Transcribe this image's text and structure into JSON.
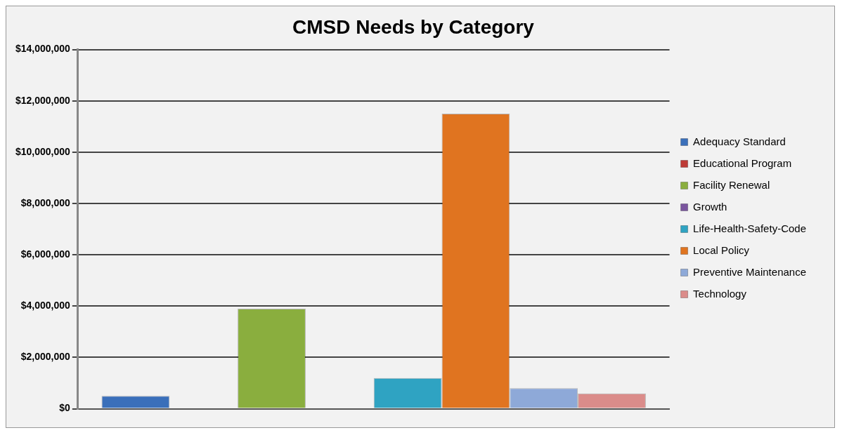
{
  "chart_data": {
    "type": "bar",
    "title": "CMSD Needs by Category",
    "categories": [
      null
    ],
    "series": [
      {
        "name": "Adequacy Standard",
        "color": "#3a6fba",
        "values": [
          500000
        ]
      },
      {
        "name": "Educational Program",
        "color": "#be3b37",
        "values": [
          0
        ]
      },
      {
        "name": "Facility Renewal",
        "color": "#8aae3e",
        "values": [
          3900000
        ]
      },
      {
        "name": "Growth",
        "color": "#7a559e",
        "values": [
          0
        ]
      },
      {
        "name": "Life-Health-Safety-Code",
        "color": "#2fa3c2",
        "values": [
          1200000
        ]
      },
      {
        "name": "Local Policy",
        "color": "#e07420",
        "values": [
          11500000
        ]
      },
      {
        "name": "Preventive Maintenance",
        "color": "#8ea9d8",
        "values": [
          800000
        ]
      },
      {
        "name": "Technology",
        "color": "#db8c8a",
        "values": [
          600000
        ]
      }
    ],
    "ylim": [
      0,
      14000000
    ],
    "yticks": [
      {
        "value": 0,
        "label": "$0"
      },
      {
        "value": 2000000,
        "label": "$2,000,000"
      },
      {
        "value": 4000000,
        "label": "$4,000,000"
      },
      {
        "value": 6000000,
        "label": "$6,000,000"
      },
      {
        "value": 8000000,
        "label": "$8,000,000"
      },
      {
        "value": 10000000,
        "label": "$10,000,000"
      },
      {
        "value": 12000000,
        "label": "$12,000,000"
      },
      {
        "value": 14000000,
        "label": "$14,000,000"
      }
    ],
    "grid": "y",
    "legend": "right"
  }
}
